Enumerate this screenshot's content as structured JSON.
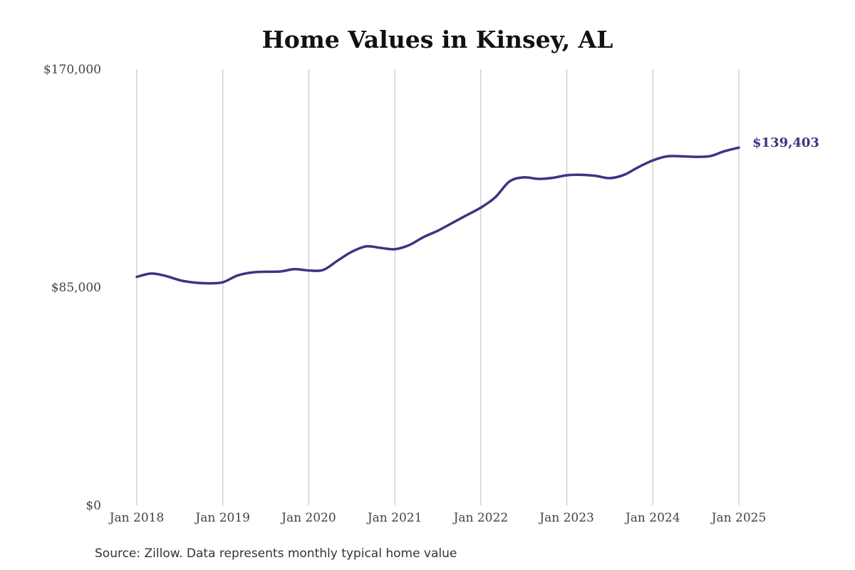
{
  "colors": {
    "line": "#3b3580",
    "grid": "#c8c8c8",
    "text": "#444444"
  },
  "chart_data": {
    "type": "line",
    "title": "Home Values in Kinsey, AL",
    "source": "Source: Zillow. Data represents monthly typical home value",
    "xlabel": "",
    "ylabel": "",
    "ylim": [
      0,
      170000
    ],
    "yticks": [
      {
        "value": 0,
        "label": "$0"
      },
      {
        "value": 85000,
        "label": "$85,000"
      },
      {
        "value": 170000,
        "label": "$170,000"
      }
    ],
    "xticks": [
      {
        "value": 2018.0,
        "label": "Jan 2018"
      },
      {
        "value": 2019.0,
        "label": "Jan 2019"
      },
      {
        "value": 2020.0,
        "label": "Jan 2020"
      },
      {
        "value": 2021.0,
        "label": "Jan 2021"
      },
      {
        "value": 2022.0,
        "label": "Jan 2022"
      },
      {
        "value": 2023.0,
        "label": "Jan 2023"
      },
      {
        "value": 2024.0,
        "label": "Jan 2024"
      },
      {
        "value": 2025.0,
        "label": "Jan 2025"
      }
    ],
    "xlim": [
      2018.0,
      2025.0
    ],
    "grid": "vertical",
    "end_label": "$139,403",
    "series": [
      {
        "x": [
          2018.0,
          2018.167,
          2018.333,
          2018.5,
          2018.667,
          2018.833,
          2019.0,
          2019.167,
          2019.333,
          2019.5,
          2019.667,
          2019.833,
          2020.0,
          2020.167,
          2020.333,
          2020.5,
          2020.667,
          2020.833,
          2021.0,
          2021.167,
          2021.333,
          2021.5,
          2021.667,
          2021.833,
          2022.0,
          2022.167,
          2022.333,
          2022.5,
          2022.667,
          2022.833,
          2023.0,
          2023.167,
          2023.333,
          2023.5,
          2023.667,
          2023.833,
          2024.0,
          2024.167,
          2024.333,
          2024.5,
          2024.667,
          2024.833,
          2025.0
        ],
        "values": [
          89000,
          90300,
          89400,
          87700,
          86800,
          86500,
          86900,
          89500,
          90700,
          91000,
          91100,
          92000,
          91500,
          91700,
          95300,
          98800,
          100900,
          100300,
          99800,
          101400,
          104500,
          107000,
          110000,
          113000,
          116000,
          120000,
          126200,
          127800,
          127200,
          127600,
          128600,
          128800,
          128400,
          127500,
          128800,
          131800,
          134400,
          136000,
          136000,
          135800,
          136100,
          138000,
          139403
        ]
      }
    ]
  }
}
